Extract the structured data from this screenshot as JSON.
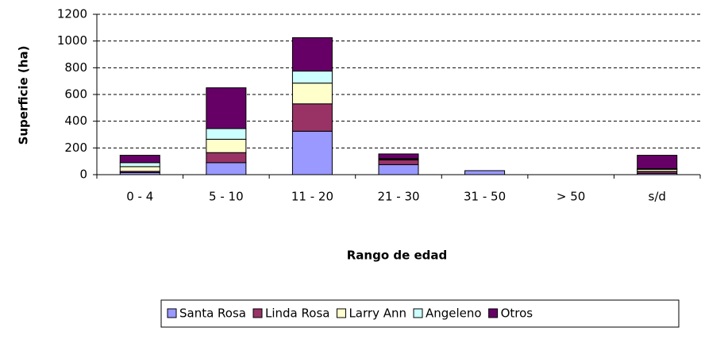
{
  "chart_data": {
    "type": "stacked_bar",
    "xlabel": "Rango de edad",
    "ylabel": "Superficie (ha)",
    "categories": [
      "0 - 4",
      "5 - 10",
      "11 - 20",
      "21 - 30",
      "31 - 50",
      "> 50",
      "s/d"
    ],
    "series": [
      {
        "name": "Santa Rosa",
        "color": "#9999ff",
        "values": [
          15,
          90,
          325,
          75,
          30,
          0,
          10
        ]
      },
      {
        "name": "Linda Rosa",
        "color": "#993366",
        "values": [
          10,
          75,
          205,
          35,
          0,
          0,
          15
        ]
      },
      {
        "name": "Larry Ann",
        "color": "#ffffcc",
        "values": [
          35,
          100,
          155,
          5,
          0,
          0,
          15
        ]
      },
      {
        "name": "Angeleno",
        "color": "#ccffff",
        "values": [
          30,
          80,
          90,
          5,
          0,
          0,
          5
        ]
      },
      {
        "name": "Otros",
        "color": "#660066",
        "values": [
          55,
          305,
          250,
          35,
          0,
          0,
          100
        ]
      }
    ],
    "ylim": [
      0,
      1200
    ],
    "yticks": [
      0,
      200,
      400,
      600,
      800,
      1000,
      1200
    ],
    "grid": true,
    "legend": "bottom"
  }
}
